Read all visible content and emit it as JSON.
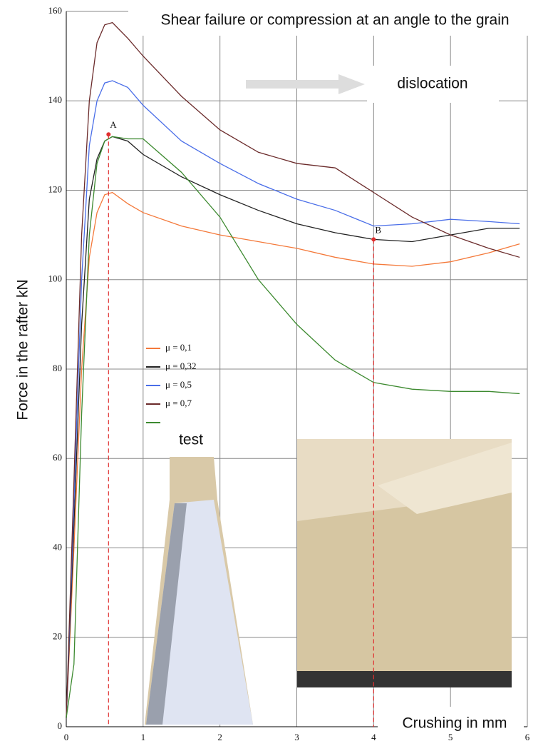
{
  "chart_data": {
    "type": "line",
    "title": "Shear failure or compression at an angle to the grain",
    "x_label": "Crushing in mm",
    "y_label": "Force in the rafter kN",
    "annotation": "dislocation",
    "x": [
      0,
      0.1,
      0.2,
      0.3,
      0.4,
      0.5,
      0.6,
      0.8,
      1,
      1.5,
      2,
      2.5,
      3,
      3.5,
      4,
      4.5,
      5,
      5.5,
      5.9
    ],
    "series": [
      {
        "name": "μ = 0,1",
        "color": "#f4793a",
        "values": [
          2,
          40,
          80,
          105,
          115,
          119,
          119.5,
          117,
          115,
          112,
          110,
          108.5,
          107,
          105,
          103.5,
          103,
          104,
          106,
          108
        ]
      },
      {
        "name": "μ = 0,32",
        "color": "#222222",
        "values": [
          2,
          45,
          90,
          118,
          127,
          131,
          132,
          131,
          128,
          123,
          119,
          115.5,
          112.5,
          110.5,
          109,
          108.5,
          110,
          111.5,
          111.5
        ]
      },
      {
        "name": "μ = 0,5",
        "color": "#4a6ee8",
        "values": [
          2,
          50,
          100,
          130,
          140,
          144,
          144.5,
          143,
          139,
          131,
          126,
          121.5,
          118,
          115.5,
          112,
          112.5,
          113.5,
          113,
          112.5
        ]
      },
      {
        "name": "μ = 0,7",
        "color": "#6b2b2b",
        "values": [
          2,
          55,
          110,
          140,
          153,
          157,
          157.5,
          154,
          150,
          141,
          133.5,
          128.5,
          126,
          125,
          119.5,
          114,
          110,
          107,
          105
        ]
      },
      {
        "name": "test",
        "color": "#3d8a30",
        "values": [
          2,
          14,
          70,
          110,
          126,
          131,
          132,
          131.5,
          131.5,
          124,
          114,
          100,
          90,
          82,
          77,
          75.5,
          75,
          75,
          74.5
        ]
      }
    ],
    "markers": [
      {
        "label": "A",
        "x": 0.55,
        "y": 132.5
      },
      {
        "label": "B",
        "x": 4,
        "y": 109
      }
    ],
    "marker_color": "#e03030",
    "xlim": [
      0,
      6
    ],
    "ylim": [
      0,
      160
    ],
    "xticks": [
      0,
      1,
      2,
      3,
      4,
      5,
      6
    ],
    "yticks": [
      0,
      20,
      40,
      60,
      80,
      100,
      120,
      140,
      160
    ],
    "grid": true
  }
}
